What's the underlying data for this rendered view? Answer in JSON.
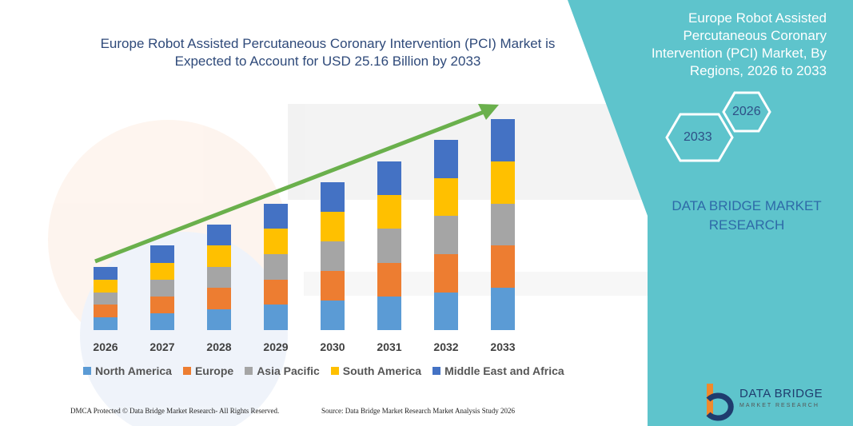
{
  "chart_data": {
    "type": "bar",
    "stacked": true,
    "title": "Europe Robot Assisted Percutaneous Coronary Intervention (PCI) Market is Expected to Account for USD 25.16 Billion by 2033",
    "categories": [
      "2026",
      "2027",
      "2028",
      "2029",
      "2030",
      "2031",
      "2032",
      "2033"
    ],
    "series": [
      {
        "name": "North America",
        "color": "#5b9bd5",
        "values": [
          16,
          21,
          26,
          32,
          37,
          42,
          47,
          53
        ]
      },
      {
        "name": "Europe",
        "color": "#ed7d31",
        "values": [
          16,
          21,
          27,
          31,
          37,
          42,
          48,
          53
        ]
      },
      {
        "name": "Asia Pacific",
        "color": "#a5a5a5",
        "values": [
          15,
          21,
          26,
          32,
          37,
          43,
          48,
          52
        ]
      },
      {
        "name": "South America",
        "color": "#ffc000",
        "values": [
          16,
          21,
          27,
          32,
          37,
          42,
          47,
          53
        ]
      },
      {
        "name": "Middle East and Africa",
        "color": "#4472c4",
        "values": [
          16,
          22,
          26,
          31,
          37,
          42,
          48,
          53
        ]
      }
    ],
    "legend_position": "bottom",
    "grid": false
  },
  "side_panel": {
    "title": "Europe Robot Assisted Percutaneous Coronary Intervention (PCI) Market, By Regions, 2026 to 2033",
    "hex_start": "2026",
    "hex_end": "2033",
    "brand_line1": "DATA BRIDGE MARKET",
    "brand_line2": "RESEARCH",
    "panel_color": "#5ec4cc"
  },
  "logo": {
    "name": "DATA BRIDGE",
    "tagline": "MARKET RESEARCH"
  },
  "footer": {
    "left": "DMCA Protected © Data Bridge Market Research- All Rights Reserved.",
    "right": "Source: Data Bridge Market Research Market Analysis Study 2026"
  },
  "icons": {
    "trend_arrow": "trend-arrow-icon",
    "logo": "data-bridge-logo-icon"
  }
}
